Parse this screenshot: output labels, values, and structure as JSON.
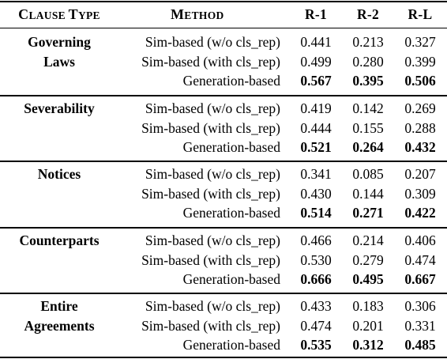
{
  "header": {
    "clause_type_cap1": "C",
    "clause_type_rest1": "LAUSE ",
    "clause_type_cap2": "T",
    "clause_type_rest2": "YPE",
    "method_cap": "M",
    "method_rest": "ETHOD",
    "r1": "R-1",
    "r2": "R-2",
    "rl": "R-L"
  },
  "groups": [
    {
      "clause_lines": [
        "Governing",
        "Laws"
      ],
      "rows": [
        {
          "method": "Sim-based (w/o cls_rep)",
          "r1": "0.441",
          "r2": "0.213",
          "rl": "0.327",
          "bold": false
        },
        {
          "method": "Sim-based (with cls_rep)",
          "r1": "0.499",
          "r2": "0.280",
          "rl": "0.399",
          "bold": false
        },
        {
          "method": "Generation-based",
          "r1": "0.567",
          "r2": "0.395",
          "rl": "0.506",
          "bold": true
        }
      ]
    },
    {
      "clause_lines": [
        "Severability"
      ],
      "rows": [
        {
          "method": "Sim-based (w/o cls_rep)",
          "r1": "0.419",
          "r2": "0.142",
          "rl": "0.269",
          "bold": false
        },
        {
          "method": "Sim-based (with cls_rep)",
          "r1": "0.444",
          "r2": "0.155",
          "rl": "0.288",
          "bold": false
        },
        {
          "method": "Generation-based",
          "r1": "0.521",
          "r2": "0.264",
          "rl": "0.432",
          "bold": true
        }
      ]
    },
    {
      "clause_lines": [
        "Notices"
      ],
      "rows": [
        {
          "method": "Sim-based (w/o cls_rep)",
          "r1": "0.341",
          "r2": "0.085",
          "rl": "0.207",
          "bold": false
        },
        {
          "method": "Sim-based (with cls_rep)",
          "r1": "0.430",
          "r2": "0.144",
          "rl": "0.309",
          "bold": false
        },
        {
          "method": "Generation-based",
          "r1": "0.514",
          "r2": "0.271",
          "rl": "0.422",
          "bold": true
        }
      ]
    },
    {
      "clause_lines": [
        "Counterparts"
      ],
      "rows": [
        {
          "method": "Sim-based (w/o cls_rep)",
          "r1": "0.466",
          "r2": "0.214",
          "rl": "0.406",
          "bold": false
        },
        {
          "method": "Sim-based (with cls_rep)",
          "r1": "0.530",
          "r2": "0.279",
          "rl": "0.474",
          "bold": false
        },
        {
          "method": "Generation-based",
          "r1": "0.666",
          "r2": "0.495",
          "rl": "0.667",
          "bold": true
        }
      ]
    },
    {
      "clause_lines": [
        "Entire",
        "Agreements"
      ],
      "rows": [
        {
          "method": "Sim-based (w/o cls_rep)",
          "r1": "0.433",
          "r2": "0.183",
          "rl": "0.306",
          "bold": false
        },
        {
          "method": "Sim-based (with cls_rep)",
          "r1": "0.474",
          "r2": "0.201",
          "rl": "0.331",
          "bold": false
        },
        {
          "method": "Generation-based",
          "r1": "0.535",
          "r2": "0.312",
          "rl": "0.485",
          "bold": true
        }
      ]
    }
  ]
}
